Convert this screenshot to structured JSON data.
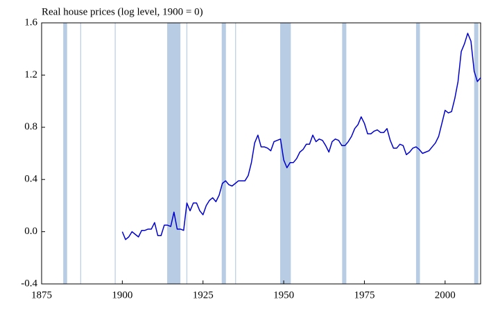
{
  "chart_data": {
    "type": "line",
    "title": "Real house prices (log level, 1900 = 0)",
    "x": [
      1900,
      1901,
      1902,
      1903,
      1904,
      1905,
      1906,
      1907,
      1908,
      1909,
      1910,
      1911,
      1912,
      1913,
      1914,
      1915,
      1916,
      1917,
      1918,
      1919,
      1920,
      1921,
      1922,
      1923,
      1924,
      1925,
      1926,
      1927,
      1928,
      1929,
      1930,
      1931,
      1932,
      1933,
      1934,
      1935,
      1936,
      1937,
      1938,
      1939,
      1940,
      1941,
      1942,
      1943,
      1944,
      1945,
      1946,
      1947,
      1948,
      1949,
      1950,
      1951,
      1952,
      1953,
      1954,
      1955,
      1956,
      1957,
      1958,
      1959,
      1960,
      1961,
      1962,
      1963,
      1964,
      1965,
      1966,
      1967,
      1968,
      1969,
      1970,
      1971,
      1972,
      1973,
      1974,
      1975,
      1976,
      1977,
      1978,
      1979,
      1980,
      1981,
      1982,
      1983,
      1984,
      1985,
      1986,
      1987,
      1988,
      1989,
      1990,
      1991,
      1992,
      1993,
      1994,
      1995,
      1996,
      1997,
      1998,
      1999,
      2000,
      2001,
      2002,
      2003,
      2004,
      2005,
      2006,
      2007,
      2008,
      2009,
      2010,
      2011
    ],
    "series": [
      {
        "color": "#0000cc",
        "values": [
          0.0,
          -0.06,
          -0.04,
          0.0,
          -0.02,
          -0.04,
          0.01,
          0.01,
          0.02,
          0.02,
          0.07,
          -0.03,
          -0.03,
          0.05,
          0.05,
          0.04,
          0.15,
          0.02,
          0.02,
          0.01,
          0.22,
          0.16,
          0.22,
          0.22,
          0.16,
          0.13,
          0.2,
          0.24,
          0.26,
          0.23,
          0.28,
          0.37,
          0.39,
          0.36,
          0.35,
          0.37,
          0.39,
          0.39,
          0.39,
          0.43,
          0.53,
          0.68,
          0.74,
          0.65,
          0.65,
          0.64,
          0.62,
          0.69,
          0.7,
          0.71,
          0.55,
          0.49,
          0.53,
          0.53,
          0.56,
          0.61,
          0.63,
          0.67,
          0.67,
          0.74,
          0.69,
          0.71,
          0.7,
          0.66,
          0.61,
          0.69,
          0.71,
          0.7,
          0.66,
          0.66,
          0.69,
          0.73,
          0.79,
          0.82,
          0.88,
          0.83,
          0.75,
          0.75,
          0.77,
          0.78,
          0.76,
          0.76,
          0.79,
          0.7,
          0.64,
          0.64,
          0.67,
          0.66,
          0.59,
          0.61,
          0.64,
          0.65,
          0.63,
          0.6,
          0.61,
          0.62,
          0.65,
          0.68,
          0.73,
          0.83,
          0.93,
          0.91,
          0.92,
          1.02,
          1.15,
          1.38,
          1.44,
          1.52,
          1.46,
          1.23,
          1.15,
          1.18
        ]
      }
    ],
    "shaded_periods": [
      [
        1881.7,
        1882.9
      ],
      [
        1887.1,
        1887.1
      ],
      [
        1897.8,
        1897.8
      ],
      [
        1913.9,
        1918.0
      ],
      [
        1920.0,
        1920.0
      ],
      [
        1930.8,
        1932.1
      ],
      [
        1935.1,
        1935.1
      ],
      [
        1948.9,
        1952.2
      ],
      [
        1968.1,
        1969.4
      ],
      [
        1991.0,
        1992.2
      ],
      [
        2009.0,
        2010.3
      ]
    ],
    "shade_color": "#b8cce4",
    "xlim": [
      1875,
      2011
    ],
    "xticks": [
      1875,
      1900,
      1925,
      1950,
      1975,
      2000
    ],
    "ylim": [
      -0.4,
      1.6
    ],
    "yticks": [
      -0.4,
      {
        "value": 0,
        "label": "0.0"
      },
      0.4,
      0.8,
      1.2,
      1.6
    ]
  }
}
